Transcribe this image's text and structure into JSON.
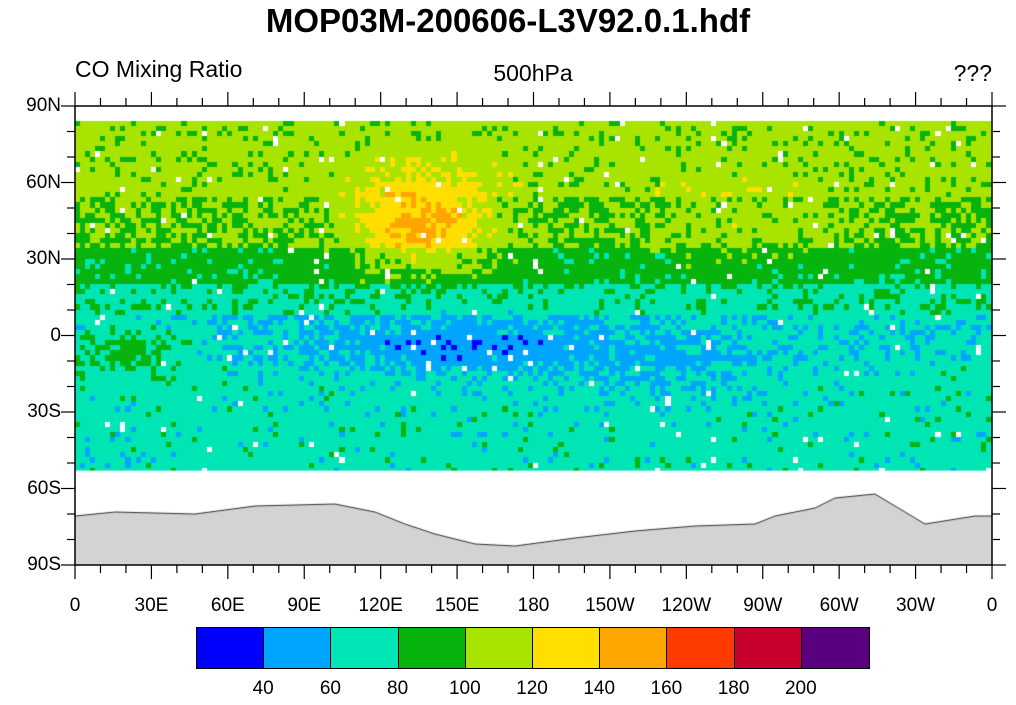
{
  "title": "MOP03M-200606-L3V92.0.1.hdf",
  "left_label": "CO Mixing Ratio",
  "center_label": "500hPa",
  "right_label": "???",
  "y_ticks": [
    "90N",
    "60N",
    "30N",
    "0",
    "30S",
    "60S",
    "90S"
  ],
  "x_ticks": [
    "0",
    "30E",
    "60E",
    "90E",
    "120E",
    "150E",
    "180",
    "150W",
    "120W",
    "90W",
    "60W",
    "30W",
    "0"
  ],
  "colorbar": {
    "colors": [
      "#0000ff",
      "#00a5ff",
      "#00e5b4",
      "#07b30d",
      "#a8e400",
      "#ffde00",
      "#ffa500",
      "#ff3b00",
      "#c8002d",
      "#5a007f"
    ],
    "labels": [
      "40",
      "60",
      "80",
      "100",
      "120",
      "140",
      "160",
      "180",
      "200"
    ]
  },
  "missing_color": "#ffffff",
  "land_color": "#d3d3d3"
}
